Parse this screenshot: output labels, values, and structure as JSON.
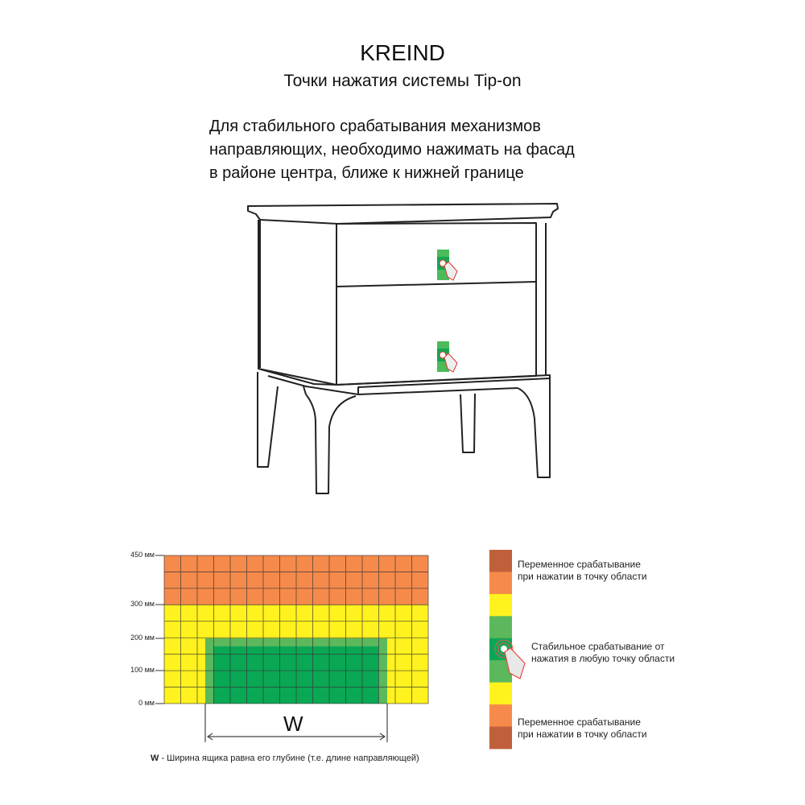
{
  "header": {
    "brand": "KREIND",
    "subtitle": "Точки нажатия системы Tip-on"
  },
  "intro": {
    "lines": [
      "Для стабильного срабатывания механизмов",
      "направляющих, необходимо нажимать на фасад",
      "в районе центра, ближе к нижней границе"
    ]
  },
  "illustration": {
    "subject": "nightstand with two drawers",
    "press_markers": 2,
    "marker_icon": "hand-press-icon"
  },
  "zone_chart": {
    "y_ticks": [
      "450 мм",
      "300 мм",
      "200 мм",
      "100 мм",
      "0 мм"
    ],
    "zones": [
      {
        "name": "variable",
        "from_mm": 300,
        "to_mm": 450,
        "color": "#f58a4b"
      },
      {
        "name": "transition",
        "from_mm": 0,
        "to_mm": 300,
        "color": "#fff21e"
      },
      {
        "name": "stable-border",
        "from_mm": 0,
        "to_mm": 200,
        "color": "#5cb85c"
      },
      {
        "name": "stable-core",
        "from_mm": 0,
        "to_mm": 175,
        "color": "#0aa855"
      }
    ],
    "width_label": "W",
    "footnote_bold": "W",
    "footnote_text": " - Ширина ящика равна его глубине (т.е. длине направляющей)"
  },
  "legend": {
    "colors": [
      "#c0603a",
      "#f58a4b",
      "#fff21e",
      "#5cb85c",
      "#0aa855",
      "#5cb85c",
      "#fff21e",
      "#f58a4b",
      "#c0603a"
    ],
    "top_text": [
      "Переменное срабатывание",
      "при нажатии в точку области"
    ],
    "middle_text": [
      "Стабильное срабатывание от",
      "нажатия в любую точку области"
    ],
    "bottom_text": [
      "Переменное срабатывание",
      "при нажатии в точку области"
    ],
    "icon": "hand-press-icon"
  }
}
